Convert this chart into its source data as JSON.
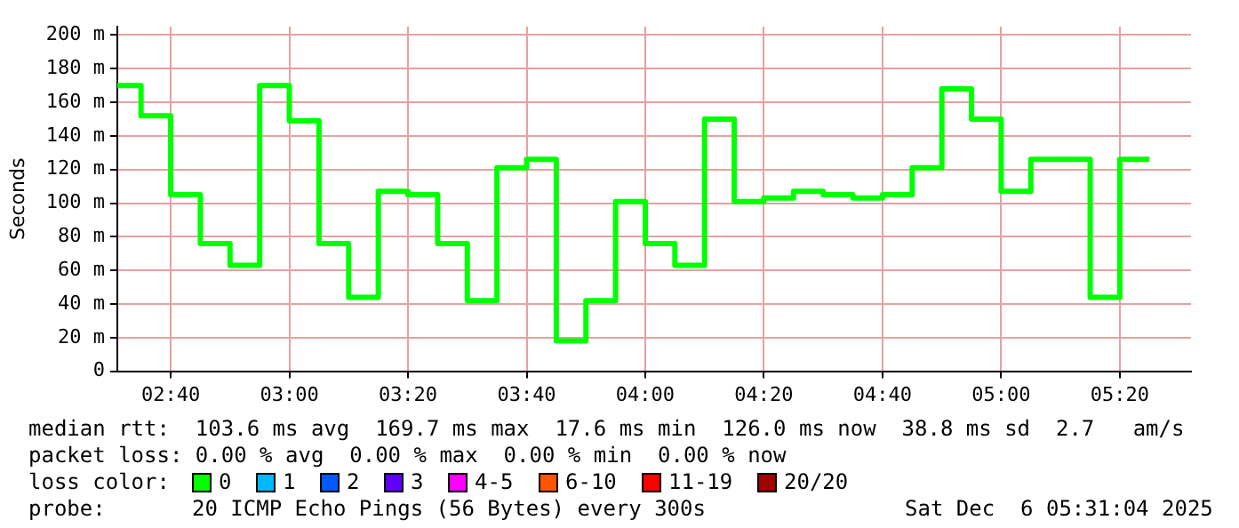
{
  "chart_data": {
    "type": "step",
    "ylabel": "Seconds",
    "x": [
      2.5167,
      2.5833,
      2.6667,
      2.75,
      2.8333,
      2.9167,
      3.0,
      3.0833,
      3.1667,
      3.25,
      3.3333,
      3.4167,
      3.5,
      3.5833,
      3.6667,
      3.75,
      3.8333,
      3.9167,
      4.0,
      4.0833,
      4.1667,
      4.25,
      4.3333,
      4.4167,
      4.5,
      4.5833,
      4.6667,
      4.75,
      4.8333,
      4.9167,
      5.0,
      5.0833,
      5.1667,
      5.25,
      5.3333,
      5.4167
    ],
    "series": [
      {
        "color": "#00ff00",
        "values": [
          170,
          152,
          105,
          76,
          63,
          170,
          149,
          76,
          44,
          107,
          105,
          76,
          42,
          121,
          126,
          18,
          42,
          101,
          76,
          63,
          150,
          101,
          103,
          107,
          105,
          103,
          105,
          121,
          168,
          150,
          107,
          126,
          126,
          44,
          126,
          126
        ]
      }
    ],
    "xlim": [
      2.5167,
      5.5333
    ],
    "xticks": [
      {
        "value": 2.6667,
        "label": "02:40"
      },
      {
        "value": 3.0,
        "label": "03:00"
      },
      {
        "value": 3.3333,
        "label": "03:20"
      },
      {
        "value": 3.6667,
        "label": "03:40"
      },
      {
        "value": 4.0,
        "label": "04:00"
      },
      {
        "value": 4.3333,
        "label": "04:20"
      },
      {
        "value": 4.6667,
        "label": "04:40"
      },
      {
        "value": 5.0,
        "label": "05:00"
      },
      {
        "value": 5.3333,
        "label": "05:20"
      }
    ],
    "ylim": [
      0,
      205
    ],
    "yticks": [
      0,
      {
        "value": 20,
        "label": "20 m"
      },
      {
        "value": 40,
        "label": "40 m"
      },
      {
        "value": 60,
        "label": "60 m"
      },
      {
        "value": 80,
        "label": "80 m"
      },
      {
        "value": 100,
        "label": "100 m"
      },
      {
        "value": 120,
        "label": "120 m"
      },
      {
        "value": 140,
        "label": "140 m"
      },
      {
        "value": 160,
        "label": "160 m"
      },
      {
        "value": 180,
        "label": "180 m"
      },
      {
        "value": 200,
        "label": "200 m"
      }
    ],
    "grid": true,
    "legend": false,
    "annotations": [
      "median rtt:  103.6 ms avg  169.7 ms max  17.6 ms min  126.0 ms now  38.8 ms sd  2.7   am/s",
      "packet loss: 0.00 % avg  0.00 % max  0.00 % min  0.00 % now",
      "loss color:",
      "0",
      "1",
      "2",
      "3",
      "4-5",
      "6-10",
      "11-19",
      "20/20",
      "probe:",
      "20 ICMP Echo Pings (56 Bytes) every 300s",
      "Sat Dec  6 05:31:04 2025"
    ]
  }
}
